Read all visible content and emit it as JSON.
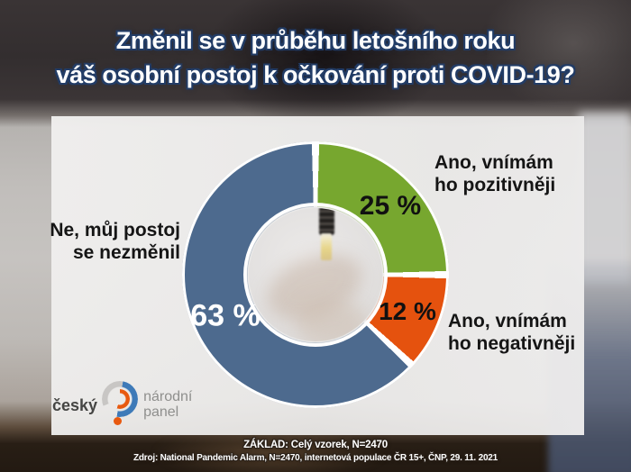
{
  "title": {
    "line1": "Změnil se v průběhu letošního roku",
    "line2": "váš osobní postoj k očkování proti COVID-19?"
  },
  "chart_data": {
    "type": "pie",
    "subtype": "donut",
    "title": "Změnil se v průběhu letošního roku váš osobní postoj k očkování proti COVID-19?",
    "unit": "%",
    "start_angle_deg": 0,
    "direction": "clockwise",
    "legend_position": "callouts",
    "slices": [
      {
        "label": "Ano, vnímám ho pozitivněji",
        "value": 25,
        "display": "25 %",
        "color": "#77a72f"
      },
      {
        "label": "Ano, vnímám ho negativněji",
        "value": 12,
        "display": "12 %",
        "color": "#e5520e"
      },
      {
        "label": "Ne, můj postoj se nezměnil",
        "value": 63,
        "display": "63 %",
        "color": "#4d6a8e"
      }
    ]
  },
  "callouts": {
    "positive": {
      "line1": "Ano, vnímám",
      "line2": "ho pozitivněji"
    },
    "negative": {
      "line1": "Ano, vnímám",
      "line2": "ho negativněji"
    },
    "unchanged": {
      "line1": "Ne, můj postoj",
      "line2": "se nezměnil"
    }
  },
  "logo": {
    "word": "český",
    "line1": "národní",
    "line2": "panel"
  },
  "footer": {
    "line1": "ZÁKLAD: Celý vzorek, N=2470",
    "line2": "Zdroj: National Pandemic Alarm, N=2470, internetová populace ČR 15+, ČNP, 29. 11. 2021"
  },
  "colors": {
    "positive": "#77a72f",
    "negative": "#e5520e",
    "unchanged": "#4d6a8e",
    "title_outline": "#223c66",
    "separator": "#ffffff"
  }
}
